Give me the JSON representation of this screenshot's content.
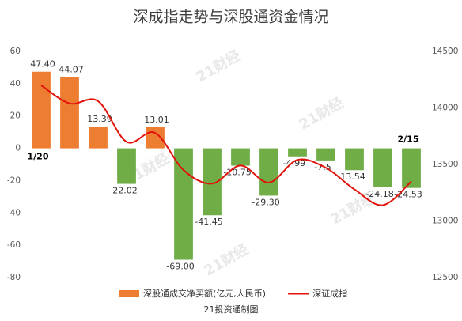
{
  "chart_data": {
    "type": "bar",
    "title": "深成指走势与深股通资金情况",
    "source": "21投资通制图",
    "watermark": "21财经",
    "categories": [
      "1/20",
      null,
      null,
      null,
      null,
      null,
      null,
      null,
      null,
      null,
      null,
      null,
      null,
      "2/15"
    ],
    "series": [
      {
        "name": "深股通成交净买额(亿元,人民币)",
        "color": "#ED7D31",
        "negative_color": "#70AD47",
        "type": "bar",
        "values": [
          47.4,
          44.07,
          13.39,
          -22.02,
          13.01,
          -69,
          -41.45,
          -10.75,
          -29.3,
          -4.99,
          -7.5,
          -13.54,
          -24.18,
          -24.53
        ],
        "value_labels": [
          "47.40",
          "44.07",
          "13.39",
          "-22.02",
          "13.01",
          "-69.00",
          "-41.45",
          "-10.75",
          "-29.30",
          "-4.99",
          "-7.5",
          "-13.54",
          "-24.18",
          "-24.53"
        ]
      },
      {
        "name": "深证成指",
        "color": "#E3120B",
        "type": "line",
        "axis": "y2",
        "values": [
          14200,
          14040,
          14060,
          13700,
          13780,
          13450,
          13330,
          13490,
          13340,
          13540,
          13470,
          13280,
          13140,
          13350
        ]
      }
    ],
    "ylim": [
      -80,
      60
    ],
    "yticks": [
      -80,
      -60,
      -40,
      -20,
      0,
      20,
      40,
      60
    ],
    "y2lim": [
      12500,
      14500
    ],
    "y2ticks": [
      12500,
      13000,
      13500,
      14000,
      14500
    ],
    "grid": false
  }
}
